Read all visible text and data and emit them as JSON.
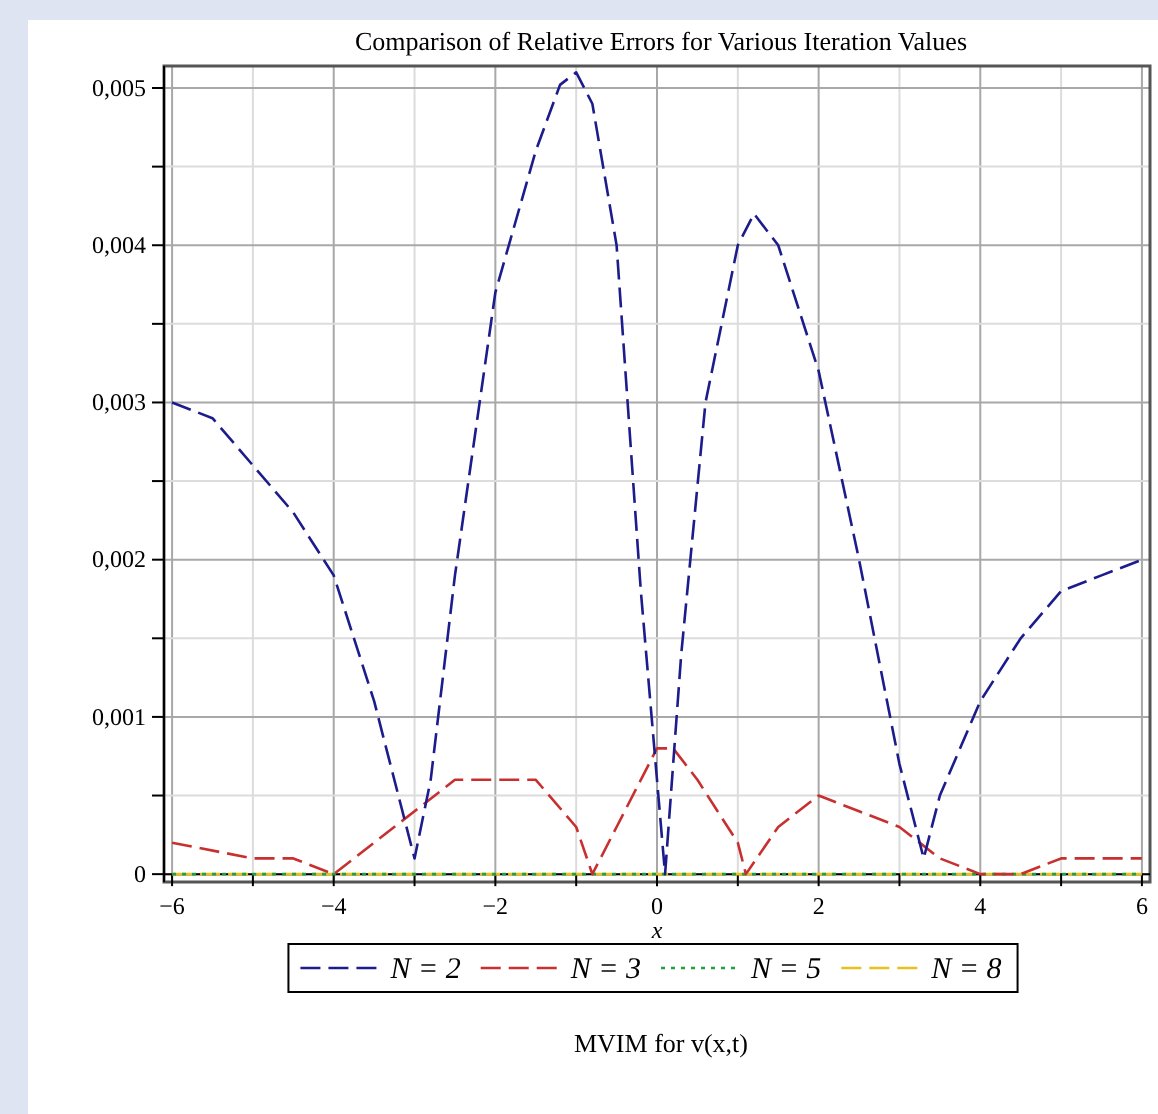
{
  "chart_data": {
    "type": "line",
    "title": "Comparison of Relative Errors for Various Iteration Values",
    "xlabel": "x",
    "annotations": [
      "MVIM for v(x,t)"
    ],
    "xlim": [
      -6.1,
      6.1
    ],
    "ylim": [
      -5e-05,
      0.00514
    ],
    "xticks": [
      -6,
      {
        "value": -5,
        "label": null
      },
      -4,
      {
        "value": -3,
        "label": null
      },
      -2,
      {
        "value": -1,
        "label": null
      },
      0,
      {
        "value": 1,
        "label": null
      },
      2,
      {
        "value": 3,
        "label": null
      },
      4,
      {
        "value": 5,
        "label": null
      },
      6
    ],
    "yticks": [
      {
        "value": 0,
        "label": "0"
      },
      {
        "value": 0.0005,
        "label": null
      },
      {
        "value": 0.001,
        "label": "0,001"
      },
      {
        "value": 0.0015,
        "label": null
      },
      {
        "value": 0.002,
        "label": "0,002"
      },
      {
        "value": 0.0025,
        "label": null
      },
      {
        "value": 0.003,
        "label": "0,003"
      },
      {
        "value": 0.0035,
        "label": null
      },
      {
        "value": 0.004,
        "label": "0,004"
      },
      {
        "value": 0.0045,
        "label": null
      },
      {
        "value": 0.005,
        "label": "0,005"
      }
    ],
    "grid": true,
    "legend": "bottom",
    "marker": "none",
    "series": [
      {
        "name": "N = 2",
        "color": "#1c1c8c",
        "line_style": "dashed",
        "x": [
          -6,
          -5.5,
          -5,
          -4.5,
          -4,
          -3.5,
          -3.2,
          -3,
          -2.8,
          -2.5,
          -2,
          -1.5,
          -1.2,
          -1,
          -0.8,
          -0.5,
          -0.2,
          0.1,
          0.3,
          0.6,
          1,
          1.2,
          1.5,
          2,
          2.5,
          3,
          3.3,
          3.5,
          4,
          4.5,
          5,
          5.5,
          6
        ],
        "values": [
          0.003,
          0.0029,
          0.0026,
          0.0023,
          0.0019,
          0.0011,
          0.0005,
          0.0001,
          0.0006,
          0.0019,
          0.0037,
          0.0046,
          0.00502,
          0.0051,
          0.0049,
          0.004,
          0.0018,
          0.0,
          0.0014,
          0.003,
          0.004,
          0.0042,
          0.004,
          0.0032,
          0.002,
          0.0007,
          0.0001,
          0.0005,
          0.0011,
          0.0015,
          0.0018,
          0.0019,
          0.002
        ]
      },
      {
        "name": "N = 3",
        "color": "#c83030",
        "line_style": "dashed",
        "x": [
          -6,
          -5,
          -4.5,
          -4,
          -3.5,
          -3,
          -2.5,
          -2,
          -1.5,
          -1,
          -0.8,
          -0.5,
          0,
          0.2,
          0.5,
          1,
          1.1,
          1.5,
          2,
          2.5,
          3,
          3.5,
          4,
          4.5,
          5,
          5.5,
          6
        ],
        "values": [
          0.0002,
          0.0001,
          0.0001,
          0.0,
          0.0002,
          0.0004,
          0.0006,
          0.0006,
          0.0006,
          0.0003,
          0.0,
          0.0003,
          0.0008,
          0.0008,
          0.0006,
          0.0002,
          0.0,
          0.0003,
          0.0005,
          0.0004,
          0.0003,
          0.0001,
          0.0,
          0.0,
          0.0001,
          0.0001,
          0.0001
        ]
      },
      {
        "name": "N = 5",
        "color": "#20a040",
        "line_style": "dotted",
        "x": [
          -6,
          -3,
          0,
          1,
          2,
          3,
          6
        ],
        "values": [
          0,
          0,
          0,
          0,
          0,
          0,
          0
        ]
      },
      {
        "name": "N = 8",
        "color": "#e8c020",
        "line_style": "dashed",
        "x": [
          -6,
          6
        ],
        "values": [
          0,
          0
        ]
      }
    ]
  }
}
